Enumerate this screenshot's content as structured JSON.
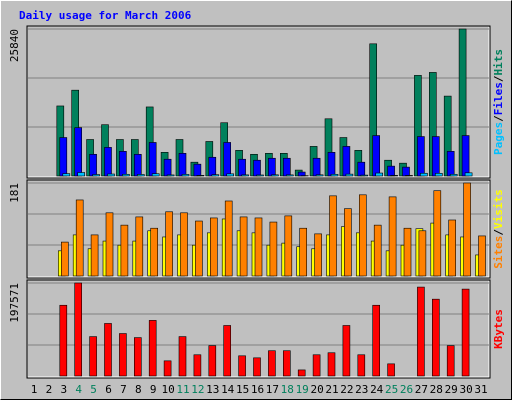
{
  "chart_data": [
    {
      "type": "bar",
      "title": "Daily usage for March 2006",
      "title_color": "#0000ff",
      "legend_separator": "/",
      "series": [
        {
          "name": "Hits",
          "color": "#00805c",
          "values": [
            0,
            0,
            12311,
            15086,
            6416,
            9017,
            6416,
            6416,
            12138,
            4162,
            6416,
            2428,
            6069,
            9364,
            4508,
            3815,
            3988,
            3988,
            1040,
            5202,
            10057,
            6763,
            4508,
            23236,
            2774,
            2254,
            17687,
            18207,
            14045,
            25840,
            0
          ]
        },
        {
          "name": "Files",
          "color": "#0000ff",
          "values": [
            0,
            0,
            6763,
            8497,
            3815,
            5029,
            4335,
            3815,
            5896,
            2948,
            3988,
            2081,
            3295,
            5896,
            2948,
            2774,
            3121,
            3121,
            694,
            3121,
            4162,
            5202,
            2428,
            7109,
            1734,
            1561,
            6936,
            6936,
            4335,
            7109,
            0
          ]
        },
        {
          "name": "Pages",
          "color": "#00c0ff",
          "values": [
            0,
            0,
            420,
            610,
            260,
            350,
            300,
            270,
            400,
            190,
            280,
            120,
            230,
            380,
            200,
            180,
            210,
            200,
            60,
            210,
            300,
            330,
            160,
            520,
            110,
            100,
            480,
            470,
            300,
            560,
            0
          ]
        }
      ],
      "ylim": [
        0,
        25840
      ],
      "yticks": [
        25840
      ]
    },
    {
      "type": "bar",
      "legend_separator": "/",
      "series": [
        {
          "name": "Visits",
          "color": "#ffff00",
          "values": [
            0,
            0,
            49,
            80,
            53,
            68,
            60,
            68,
            88,
            76,
            80,
            60,
            84,
            111,
            88,
            84,
            60,
            64,
            57,
            53,
            80,
            96,
            84,
            68,
            49,
            60,
            92,
            103,
            80,
            76,
            41
          ]
        },
        {
          "name": "Sites",
          "color": "#ff8000",
          "values": [
            0,
            0,
            66,
            148,
            80,
            123,
            99,
            115,
            93,
            125,
            123,
            107,
            113,
            146,
            115,
            113,
            105,
            117,
            93,
            82,
            156,
            131,
            158,
            99,
            154,
            93,
            88,
            166,
            109,
            181,
            78
          ]
        }
      ],
      "ylim": [
        0,
        181
      ],
      "yticks": [
        181
      ]
    },
    {
      "type": "bar",
      "categories": [
        "1",
        "2",
        "3",
        "4",
        "5",
        "6",
        "7",
        "8",
        "9",
        "10",
        "11",
        "12",
        "13",
        "14",
        "15",
        "16",
        "17",
        "18",
        "19",
        "20",
        "21",
        "22",
        "23",
        "24",
        "25",
        "26",
        "27",
        "28",
        "29",
        "30",
        "31"
      ],
      "category_colors": [
        "#000000",
        "#000000",
        "#000000",
        "#00805c",
        "#00805c",
        "#000000",
        "#000000",
        "#000000",
        "#000000",
        "#000000",
        "#00805c",
        "#00805c",
        "#000000",
        "#000000",
        "#000000",
        "#000000",
        "#000000",
        "#00805c",
        "#00805c",
        "#000000",
        "#000000",
        "#000000",
        "#000000",
        "#000000",
        "#00805c",
        "#00805c",
        "#000000",
        "#000000",
        "#000000",
        "#000000",
        "#000000"
      ],
      "series": [
        {
          "name": "KBytes",
          "color": "#ff0000",
          "values": [
            0,
            0,
            150300,
            197571,
            83700,
            111600,
            90200,
            81600,
            118100,
            32200,
            83700,
            45100,
            64400,
            107300,
            42900,
            38600,
            53700,
            53700,
            12900,
            45100,
            49400,
            107300,
            45100,
            150300,
            25800,
            0,
            188900,
            163200,
            64400,
            184600,
            0
          ]
        }
      ],
      "ylim": [
        0,
        197571
      ],
      "yticks": [
        197571
      ]
    }
  ]
}
